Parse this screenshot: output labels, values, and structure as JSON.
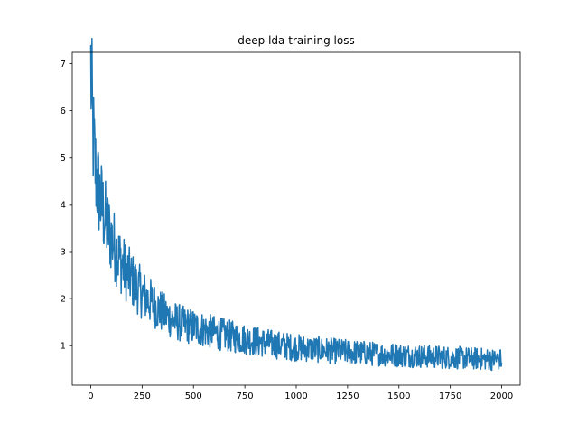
{
  "chart_data": {
    "type": "line",
    "title": "deep lda training loss",
    "xlabel": "",
    "ylabel": "",
    "xlim": [
      -90,
      2090
    ],
    "ylim": [
      0.16,
      7.24
    ],
    "xticks": [
      0,
      250,
      500,
      750,
      1000,
      1250,
      1500,
      1750,
      2000
    ],
    "yticks": [
      1,
      2,
      3,
      4,
      5,
      6,
      7
    ],
    "grid": false,
    "legend": "none",
    "series": [
      {
        "color": "#1f77b4",
        "x": [
          0,
          10,
          20,
          30,
          40,
          50,
          75,
          100,
          125,
          150,
          175,
          200,
          250,
          300,
          350,
          400,
          450,
          500,
          600,
          700,
          800,
          900,
          1000,
          1100,
          1200,
          1300,
          1400,
          1500,
          1600,
          1700,
          1800,
          1900,
          2000
        ],
        "y": [
          6.9,
          5.6,
          4.9,
          4.5,
          4.25,
          4.05,
          3.6,
          3.3,
          3.0,
          2.75,
          2.55,
          2.4,
          2.1,
          1.9,
          1.7,
          1.55,
          1.45,
          1.4,
          1.28,
          1.18,
          1.1,
          1.02,
          0.96,
          0.92,
          0.88,
          0.85,
          0.82,
          0.8,
          0.78,
          0.76,
          0.74,
          0.72,
          0.7
        ]
      }
    ]
  }
}
